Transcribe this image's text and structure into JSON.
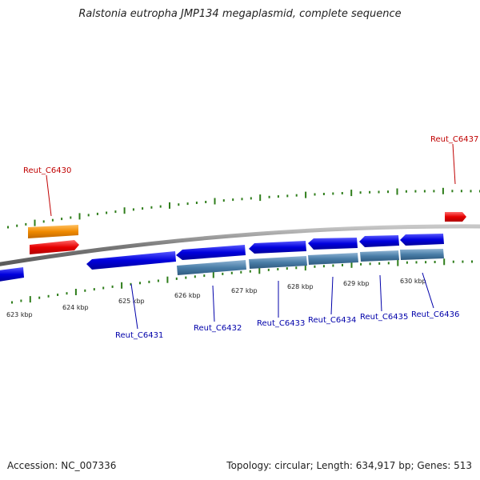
{
  "title": "Ralstonia eutropha JMP134 megaplasmid, complete sequence",
  "footer": {
    "accession": "Accession: NC_007336",
    "summary": "Topology: circular; Length: 634,917 bp; Genes: 513"
  },
  "colors": {
    "backbone": "#8a8a8a",
    "tick": "#2e7d1a",
    "forward_gene": "#e60000",
    "forward_gene_alt": "#f08a00",
    "reverse_gene": "#0000dd",
    "reverse_rna": "#4a7ea8",
    "forward_label": "#c00000",
    "reverse_label": "#0000aa"
  },
  "ruler": {
    "labels": [
      "623 kbp",
      "624 kbp",
      "625 kbp",
      "626 kbp",
      "627 kbp",
      "628 kbp",
      "629 kbp",
      "630 kbp"
    ]
  },
  "genes": {
    "forward": [
      "Reut_C6430",
      "Reut_C6437"
    ],
    "reverse": [
      "Reut_C6431",
      "Reut_C6432",
      "Reut_C6433",
      "Reut_C6434",
      "Reut_C6435",
      "Reut_C6436"
    ]
  }
}
